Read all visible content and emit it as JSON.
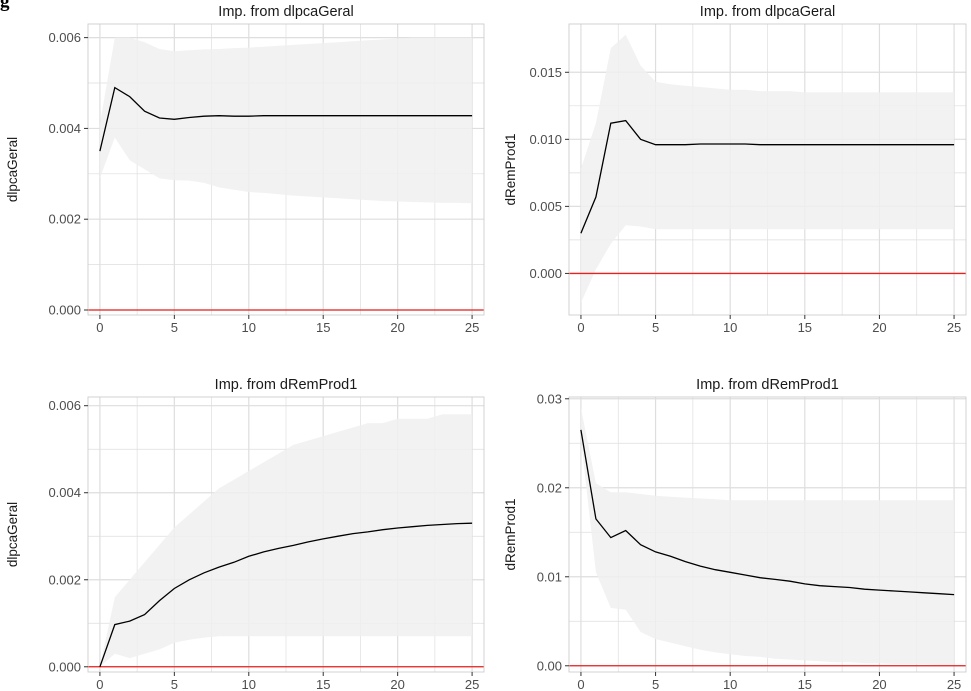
{
  "heading": "g",
  "chart_data": [
    {
      "type": "line",
      "title": "Imp. from dlpcaGeral",
      "xlabel": "",
      "ylabel": "dlpcaGeral",
      "xlim": [
        -0.8,
        25.8
      ],
      "ylim": [
        -0.00011,
        0.0063
      ],
      "xticks": [
        0,
        5,
        10,
        15,
        20,
        25
      ],
      "xtick_labels": [
        "0",
        "5",
        "10",
        "15",
        "20",
        "25"
      ],
      "yticks": [
        0,
        0.002,
        0.004,
        0.006
      ],
      "ytick_labels": [
        "0.000",
        "0.002",
        "0.004",
        "0.006"
      ],
      "zero_line": 0,
      "grid": true,
      "x": [
        0,
        1,
        2,
        3,
        4,
        5,
        6,
        7,
        8,
        9,
        10,
        11,
        12,
        13,
        14,
        15,
        16,
        17,
        18,
        19,
        20,
        21,
        22,
        23,
        24,
        25
      ],
      "series": [
        {
          "values": [
            0.0035,
            0.0049,
            0.0047,
            0.00438,
            0.00423,
            0.0042,
            0.00424,
            0.00427,
            0.00428,
            0.00427,
            0.00427,
            0.00428,
            0.00428,
            0.00428,
            0.00428,
            0.00428,
            0.00428,
            0.00428,
            0.00428,
            0.00428,
            0.00428,
            0.00428,
            0.00428,
            0.00428,
            0.00428,
            0.00428
          ]
        },
        {
          "values": [
            0.0029,
            0.0038,
            0.0033,
            0.0031,
            0.0029,
            0.00286,
            0.00285,
            0.0028,
            0.0027,
            0.00265,
            0.0026,
            0.00258,
            0.00255,
            0.00252,
            0.0025,
            0.00248,
            0.00246,
            0.00244,
            0.00242,
            0.0024,
            0.00239,
            0.00238,
            0.00237,
            0.00236,
            0.00236,
            0.00235
          ]
        },
        {
          "values": [
            0.0041,
            0.006,
            0.006,
            0.0059,
            0.00575,
            0.0057,
            0.00572,
            0.00574,
            0.00575,
            0.00577,
            0.00578,
            0.0058,
            0.00582,
            0.00584,
            0.00586,
            0.00588,
            0.0059,
            0.00592,
            0.00594,
            0.00596,
            0.00598,
            0.006,
            0.006,
            0.006,
            0.006,
            0.006
          ]
        }
      ],
      "colors": {
        "line": "#000000",
        "band": "#f0f0f0",
        "zero": "#e8201e",
        "grid": "#dedede",
        "panel_border": "#c8c8c8"
      }
    },
    {
      "type": "line",
      "title": "Imp. from dlpcaGeral",
      "xlabel": "",
      "ylabel": "dRemProd1",
      "xlim": [
        -0.8,
        25.8
      ],
      "ylim": [
        -0.0031,
        0.0186
      ],
      "xticks": [
        0,
        5,
        10,
        15,
        20,
        25
      ],
      "xtick_labels": [
        "0",
        "5",
        "10",
        "15",
        "20",
        "25"
      ],
      "yticks": [
        0,
        0.005,
        0.01,
        0.015
      ],
      "ytick_labels": [
        "0.000",
        "0.005",
        "0.010",
        "0.015"
      ],
      "zero_line": 0,
      "grid": true,
      "x": [
        0,
        1,
        2,
        3,
        4,
        5,
        6,
        7,
        8,
        9,
        10,
        11,
        12,
        13,
        14,
        15,
        16,
        17,
        18,
        19,
        20,
        21,
        22,
        23,
        24,
        25
      ],
      "series": [
        {
          "values": [
            0.003,
            0.0057,
            0.0112,
            0.0114,
            0.01,
            0.0096,
            0.0096,
            0.0096,
            0.00965,
            0.00965,
            0.00965,
            0.00965,
            0.0096,
            0.0096,
            0.0096,
            0.0096,
            0.0096,
            0.0096,
            0.0096,
            0.0096,
            0.0096,
            0.0096,
            0.0096,
            0.0096,
            0.0096,
            0.0096
          ]
        },
        {
          "values": [
            -0.0022,
            0.0003,
            0.0022,
            0.0036,
            0.0035,
            0.0033,
            0.0033,
            0.0033,
            0.0033,
            0.0033,
            0.0033,
            0.0033,
            0.0033,
            0.0033,
            0.0033,
            0.0033,
            0.0033,
            0.0033,
            0.0033,
            0.0033,
            0.0033,
            0.0033,
            0.0033,
            0.0033,
            0.0033,
            0.0033
          ]
        },
        {
          "values": [
            0.0078,
            0.0112,
            0.0168,
            0.0178,
            0.0155,
            0.0143,
            0.0141,
            0.014,
            0.0139,
            0.0138,
            0.0137,
            0.0137,
            0.0136,
            0.0136,
            0.0136,
            0.0135,
            0.0135,
            0.0135,
            0.0135,
            0.0135,
            0.0135,
            0.0135,
            0.0135,
            0.0135,
            0.0135,
            0.0135
          ]
        }
      ],
      "colors": {
        "line": "#000000",
        "band": "#f0f0f0",
        "zero": "#e8201e",
        "grid": "#dedede",
        "panel_border": "#c8c8c8"
      }
    },
    {
      "type": "line",
      "title": "Imp. from dRemProd1",
      "xlabel": "",
      "ylabel": "dlpcaGeral",
      "xlim": [
        -0.8,
        25.8
      ],
      "ylim": [
        -0.00012,
        0.0062
      ],
      "xticks": [
        0,
        5,
        10,
        15,
        20,
        25
      ],
      "xtick_labels": [
        "0",
        "5",
        "10",
        "15",
        "20",
        "25"
      ],
      "yticks": [
        0,
        0.002,
        0.004,
        0.006
      ],
      "ytick_labels": [
        "0.000",
        "0.002",
        "0.004",
        "0.006"
      ],
      "zero_line": 0,
      "grid": true,
      "x": [
        0,
        1,
        2,
        3,
        4,
        5,
        6,
        7,
        8,
        9,
        10,
        11,
        12,
        13,
        14,
        15,
        16,
        17,
        18,
        19,
        20,
        21,
        22,
        23,
        24,
        25
      ],
      "series": [
        {
          "values": [
            0,
            0.00097,
            0.00105,
            0.0012,
            0.00152,
            0.0018,
            0.002,
            0.00216,
            0.00229,
            0.0024,
            0.00254,
            0.00264,
            0.00272,
            0.00279,
            0.00287,
            0.00294,
            0.003,
            0.00306,
            0.0031,
            0.00315,
            0.00319,
            0.00322,
            0.00325,
            0.00327,
            0.00329,
            0.0033
          ]
        },
        {
          "values": [
            0,
            0.0003,
            0.0002,
            0.0003,
            0.0004,
            0.00055,
            0.00062,
            0.00067,
            0.0007,
            0.0007,
            0.0007,
            0.0007,
            0.0007,
            0.0007,
            0.0007,
            0.0007,
            0.0007,
            0.0007,
            0.0007,
            0.0007,
            0.0007,
            0.0007,
            0.0007,
            0.0007,
            0.0007,
            0.0007
          ]
        },
        {
          "values": [
            0,
            0.0016,
            0.002,
            0.0024,
            0.0028,
            0.0032,
            0.0035,
            0.0038,
            0.0041,
            0.0043,
            0.0045,
            0.0047,
            0.0049,
            0.0051,
            0.0052,
            0.0053,
            0.0054,
            0.0055,
            0.0056,
            0.0056,
            0.0057,
            0.0057,
            0.0057,
            0.0058,
            0.0058,
            0.0058
          ]
        }
      ],
      "colors": {
        "line": "#000000",
        "band": "#f0f0f0",
        "zero": "#e8201e",
        "grid": "#dedede",
        "panel_border": "#c8c8c8"
      }
    },
    {
      "type": "line",
      "title": "Imp. from dRemProd1",
      "xlabel": "",
      "ylabel": "dRemProd1",
      "xlim": [
        -0.8,
        25.8
      ],
      "ylim": [
        -0.0007,
        0.0302
      ],
      "xticks": [
        0,
        5,
        10,
        15,
        20,
        25
      ],
      "xtick_labels": [
        "0",
        "5",
        "10",
        "15",
        "20",
        "25"
      ],
      "yticks": [
        0,
        0.01,
        0.02,
        0.03
      ],
      "ytick_labels": [
        "0.00",
        "0.01",
        "0.02",
        "0.03"
      ],
      "zero_line": 0,
      "grid": true,
      "x": [
        0,
        1,
        2,
        3,
        4,
        5,
        6,
        7,
        8,
        9,
        10,
        11,
        12,
        13,
        14,
        15,
        16,
        17,
        18,
        19,
        20,
        21,
        22,
        23,
        24,
        25
      ],
      "series": [
        {
          "values": [
            0.0265,
            0.0165,
            0.0144,
            0.0152,
            0.0136,
            0.0128,
            0.0123,
            0.0117,
            0.0112,
            0.0108,
            0.0105,
            0.0102,
            0.0099,
            0.0097,
            0.0095,
            0.0092,
            0.009,
            0.0089,
            0.0088,
            0.0086,
            0.0085,
            0.0084,
            0.0083,
            0.0082,
            0.0081,
            0.008
          ]
        },
        {
          "values": [
            0.0255,
            0.0105,
            0.0065,
            0.0063,
            0.0038,
            0.003,
            0.0026,
            0.0022,
            0.0018,
            0.0015,
            0.0013,
            0.0011,
            0.001,
            0.0008,
            0.0007,
            0.0006,
            0.0005,
            0.0004,
            0.0004,
            0.0003,
            0.0003,
            0.0002,
            0.0002,
            0.0002,
            0.0001,
            0.0001
          ]
        },
        {
          "values": [
            0.029,
            0.0205,
            0.0195,
            0.0195,
            0.0193,
            0.0191,
            0.019,
            0.0189,
            0.0188,
            0.0187,
            0.0186,
            0.0186,
            0.0186,
            0.0186,
            0.0186,
            0.0186,
            0.0186,
            0.0186,
            0.0186,
            0.0186,
            0.0186,
            0.0186,
            0.0186,
            0.0186,
            0.0186,
            0.0186
          ]
        }
      ],
      "colors": {
        "line": "#000000",
        "band": "#f0f0f0",
        "zero": "#e8201e",
        "grid": "#dedede",
        "panel_border": "#c8c8c8"
      }
    }
  ]
}
